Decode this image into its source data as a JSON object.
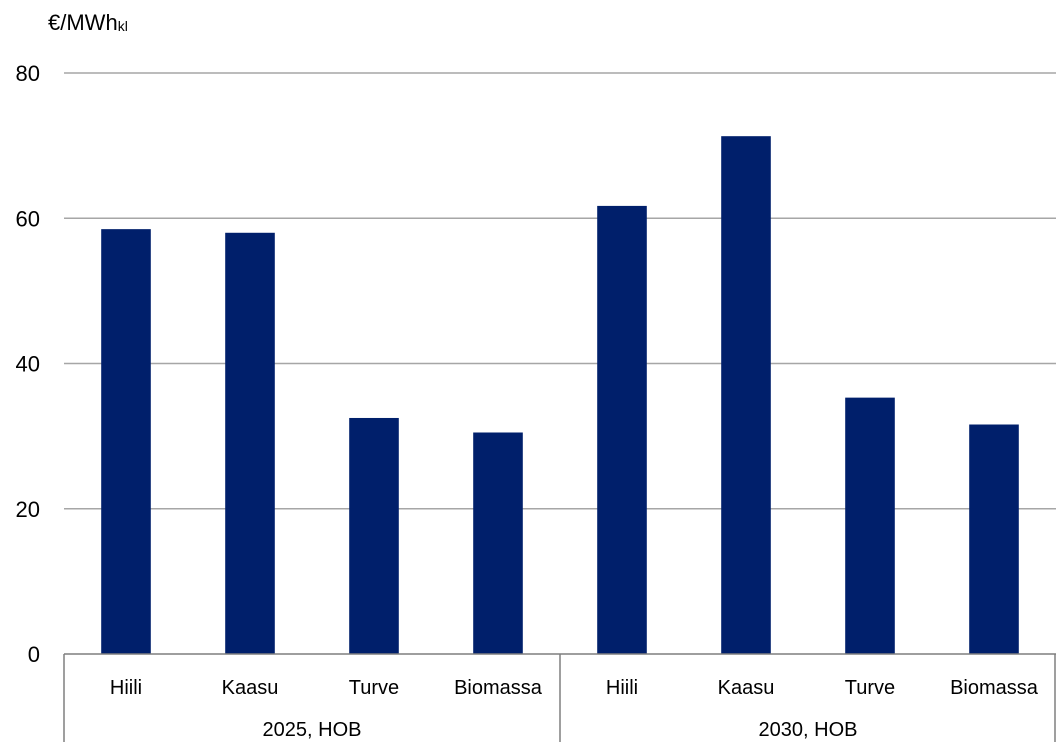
{
  "chart_data": {
    "type": "bar",
    "title": "",
    "ylabel": "€/MWh",
    "ylabel_subscript": "kl",
    "xlabel": "",
    "ylim": [
      0,
      80
    ],
    "yticks": [
      "0",
      "20",
      "40",
      "60",
      "80"
    ],
    "grid": true,
    "legend": "none",
    "bar_color": "#001f6b",
    "groups": [
      {
        "label": "2025, HOB",
        "categories": [
          "Hiili",
          "Kaasu",
          "Turve",
          "Biomassa"
        ],
        "values": [
          58.5,
          58.0,
          32.5,
          30.5
        ]
      },
      {
        "label": "2030, HOB",
        "categories": [
          "Hiili",
          "Kaasu",
          "Turve",
          "Biomassa"
        ],
        "values": [
          61.7,
          71.3,
          35.3,
          31.6
        ]
      }
    ]
  }
}
